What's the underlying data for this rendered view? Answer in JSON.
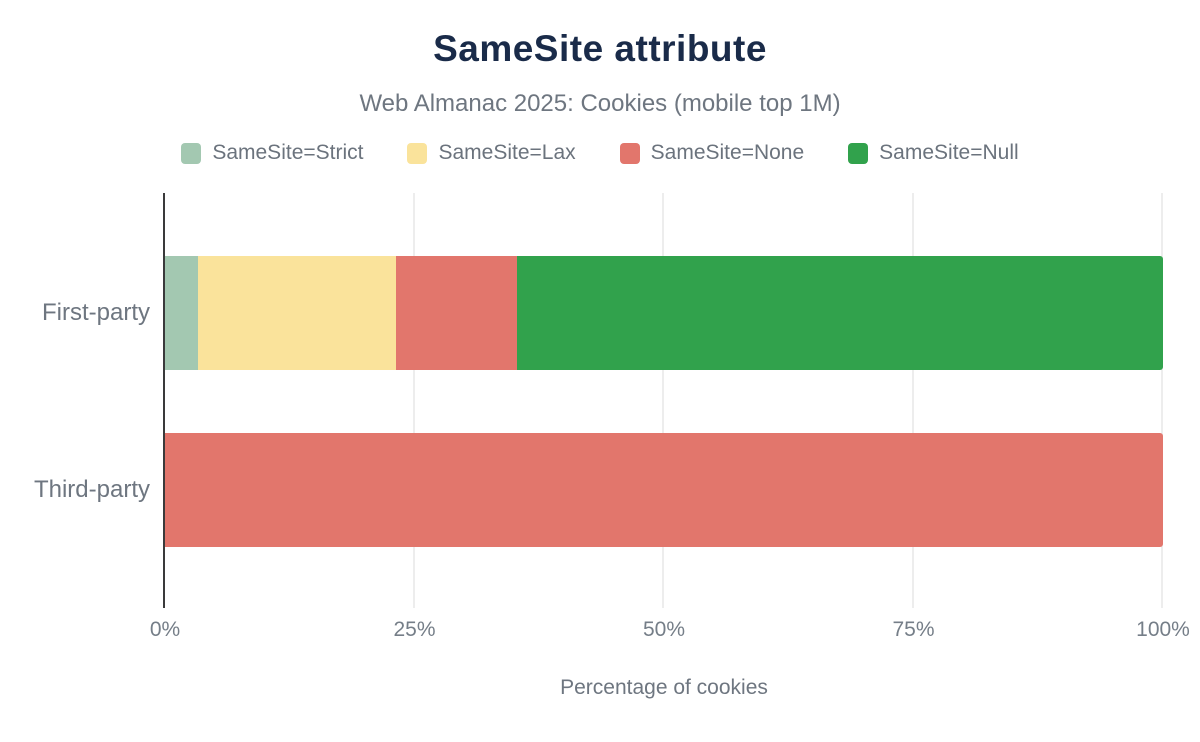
{
  "chart_data": {
    "type": "bar",
    "orientation": "horizontal",
    "stacked": true,
    "title": "SameSite attribute",
    "subtitle": "Web Almanac 2025: Cookies (mobile top 1M)",
    "xlabel": "Percentage of cookies",
    "ylabel": "",
    "categories": [
      "First-party",
      "Third-party"
    ],
    "series": [
      {
        "name": "SameSite=Strict",
        "color": "#a3c8b1",
        "values": [
          3.3,
          0
        ]
      },
      {
        "name": "SameSite=Lax",
        "color": "#fae39b",
        "values": [
          19.8,
          0
        ]
      },
      {
        "name": "SameSite=None",
        "color": "#e2766c",
        "values": [
          12.2,
          100
        ]
      },
      {
        "name": "SameSite=Null",
        "color": "#31a24c",
        "values": [
          64.7,
          0
        ]
      }
    ],
    "xlim": [
      0,
      100
    ],
    "xticks": [
      {
        "value": 0,
        "label": "0%"
      },
      {
        "value": 25,
        "label": "25%"
      },
      {
        "value": 50,
        "label": "50%"
      },
      {
        "value": 75,
        "label": "75%"
      },
      {
        "value": 100,
        "label": "100%"
      }
    ],
    "grid": "vertical-only",
    "legend_position": "top"
  },
  "theme": {
    "background": "#ffffff",
    "title_color": "#1a2b49",
    "subtitle_color": "#6e7680",
    "category_label_color": "#6e7680",
    "tick_label_color": "#757e88",
    "axis_title_color": "#6e7680",
    "legend_text_color": "#6b737d",
    "grid_color": "#ededed",
    "axis_line_color": "#3a3a3b"
  }
}
